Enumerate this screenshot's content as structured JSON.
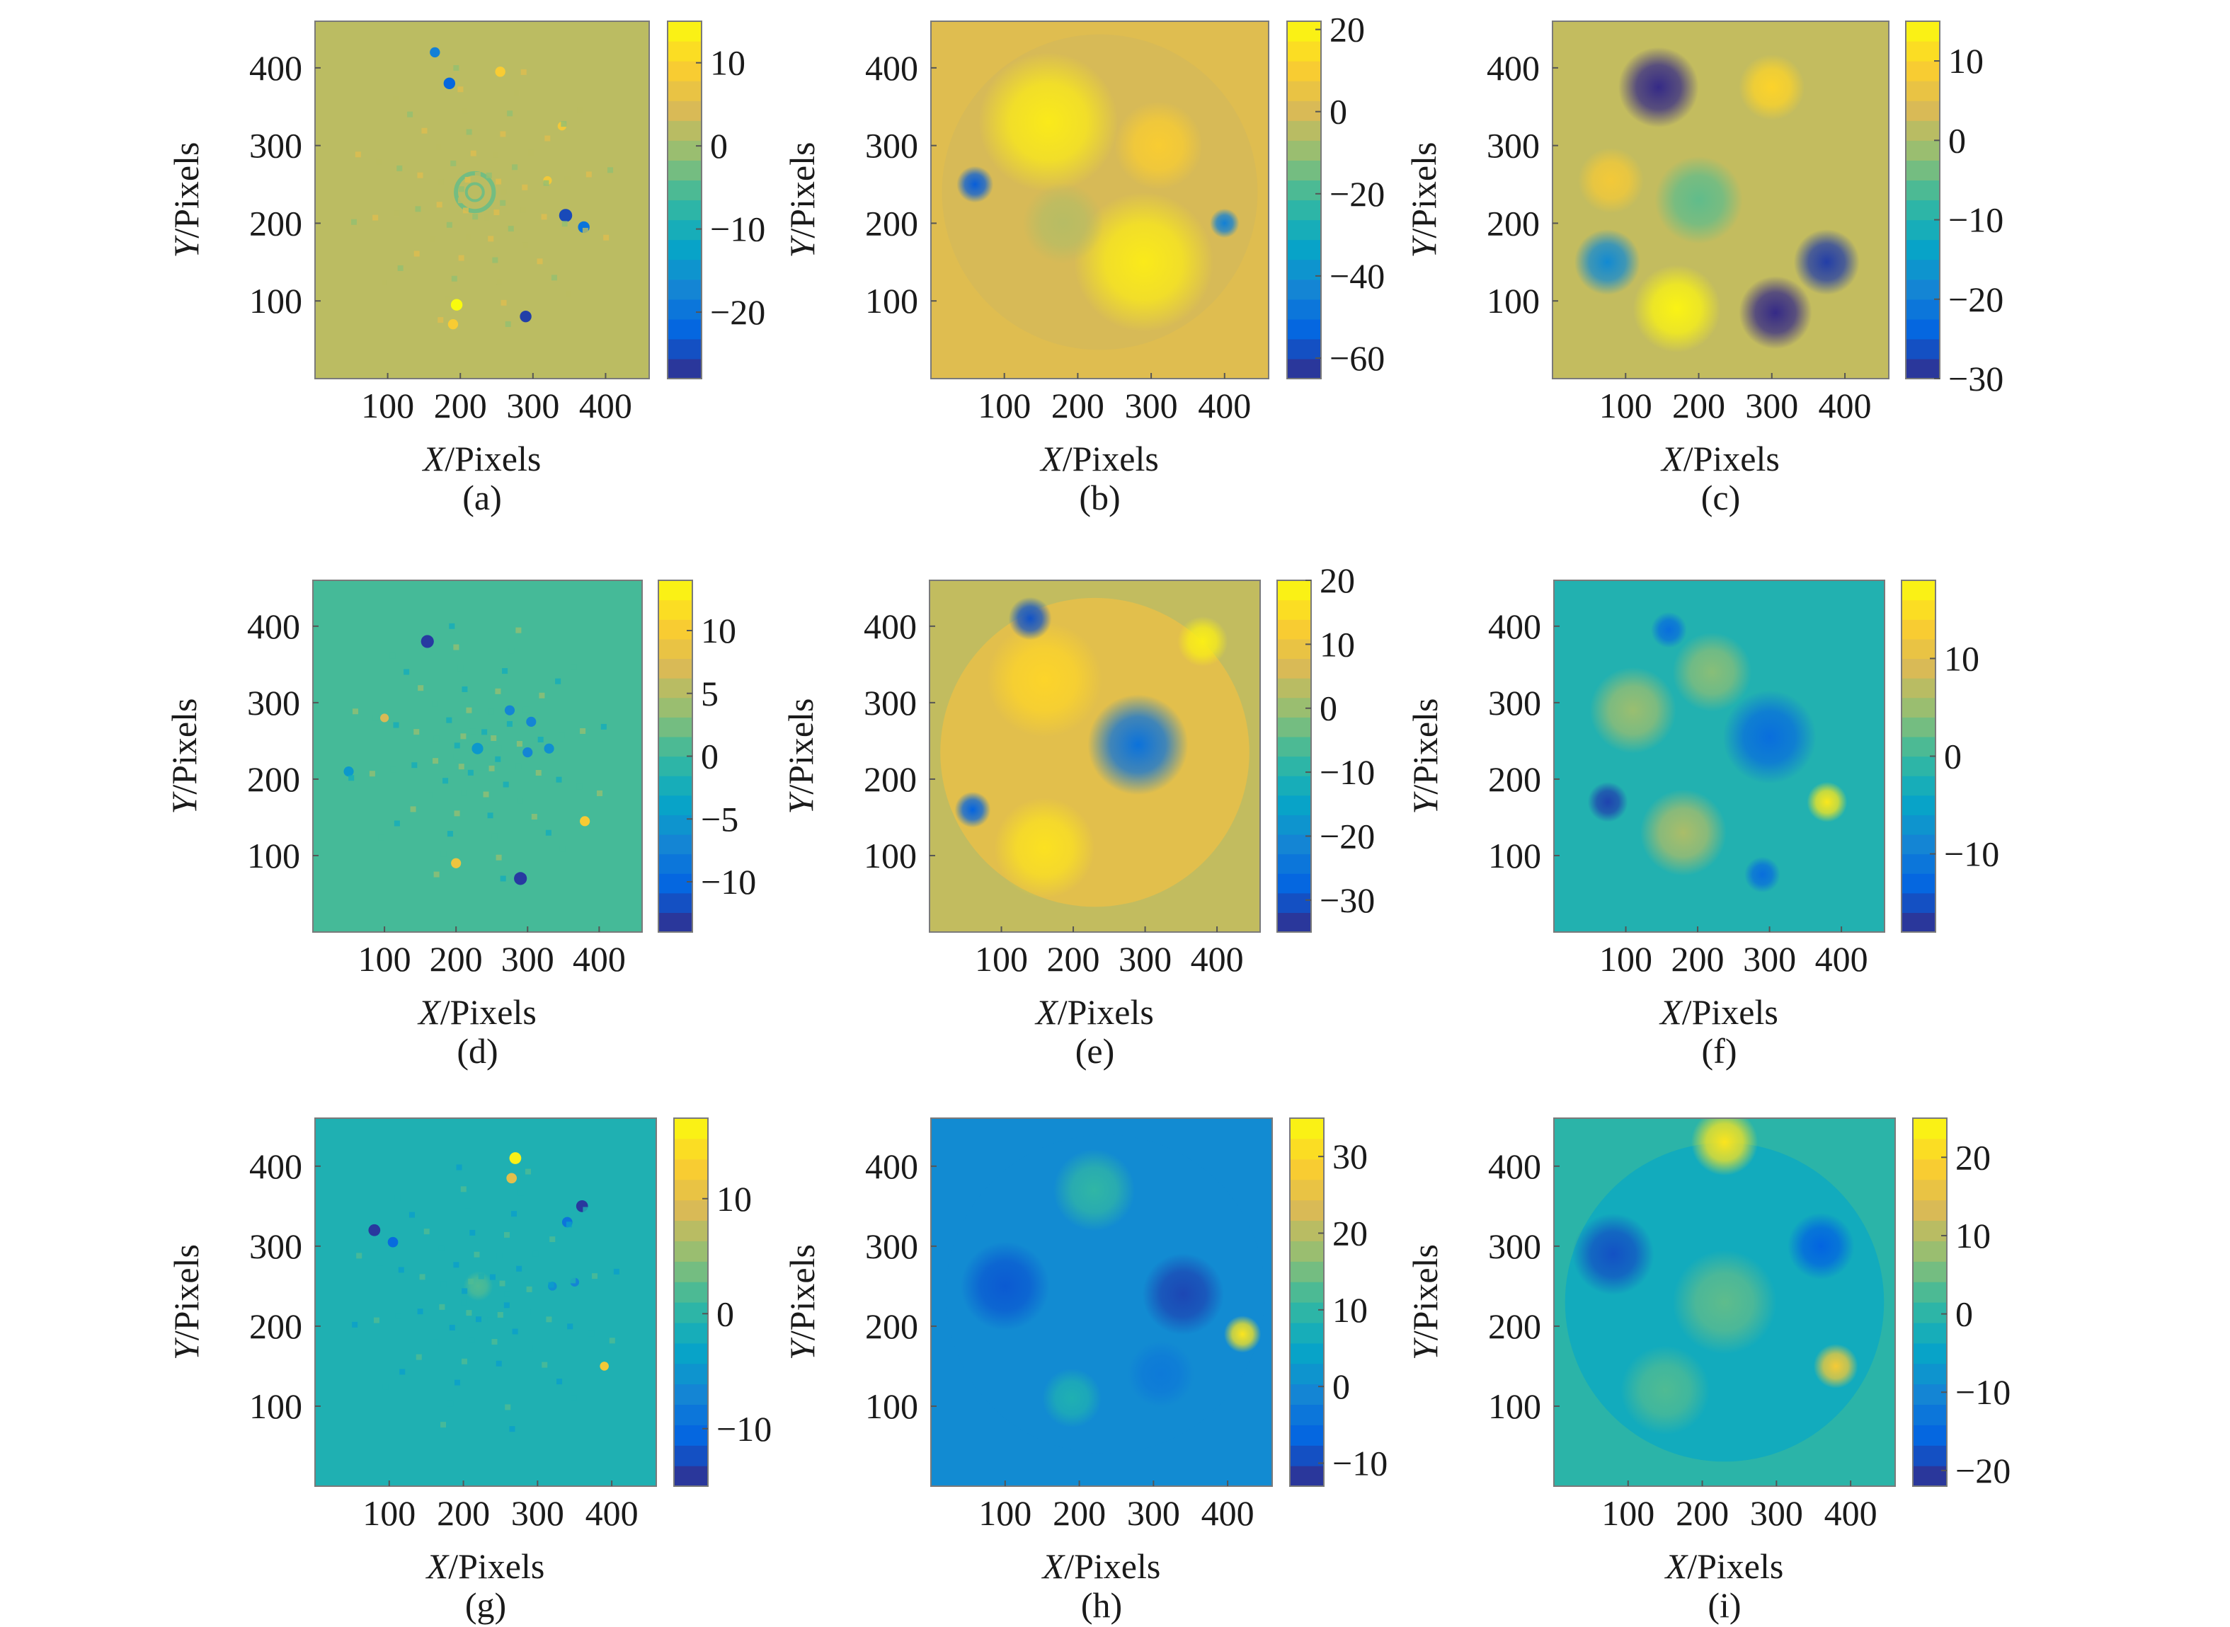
{
  "figure": {
    "type": "heatmap",
    "panels_layout": "3x3 grid",
    "colormap": "parula",
    "colormap_stops": [
      "#352a87",
      "#0363e1",
      "#1485d4",
      "#06a7c6",
      "#38b99e",
      "#92bf73",
      "#d9ba56",
      "#fcce2e",
      "#f9fb0e"
    ]
  },
  "chart_data": [
    {
      "id": "a",
      "type": "heatmap",
      "caption": "(a)",
      "xlabel_var": "X",
      "xlabel_unit": "/Pixels",
      "ylabel_var": "Y",
      "ylabel_unit": "/Pixels",
      "xticks": [
        "100",
        "200",
        "300",
        "400"
      ],
      "yticks": [
        "100",
        "200",
        "300",
        "400"
      ],
      "xlim": [
        0,
        460
      ],
      "ylim": [
        0,
        460
      ],
      "colorbar": {
        "range": [
          -28,
          15
        ],
        "ticks": [
          10,
          0,
          -10,
          -20
        ],
        "tick_labels": [
          "10",
          "0",
          "−10",
          "−20"
        ]
      },
      "background_value": 2,
      "pattern": "sparse points along radial lines",
      "spots": [
        {
          "x": 220,
          "y": 240,
          "v": -3,
          "r": 26,
          "ring": true
        },
        {
          "x": 185,
          "y": 380,
          "v": -22,
          "r": 8
        },
        {
          "x": 165,
          "y": 420,
          "v": -18,
          "r": 7
        },
        {
          "x": 345,
          "y": 210,
          "v": -25,
          "r": 9
        },
        {
          "x": 370,
          "y": 195,
          "v": -20,
          "r": 8
        },
        {
          "x": 290,
          "y": 80,
          "v": -26,
          "r": 8
        },
        {
          "x": 195,
          "y": 95,
          "v": 15,
          "r": 8
        },
        {
          "x": 190,
          "y": 70,
          "v": 9,
          "r": 7
        },
        {
          "x": 255,
          "y": 395,
          "v": 9,
          "r": 7
        },
        {
          "x": 320,
          "y": 255,
          "v": 8,
          "r": 6
        },
        {
          "x": 340,
          "y": 325,
          "v": 8,
          "r": 6
        }
      ]
    },
    {
      "id": "b",
      "type": "heatmap",
      "caption": "(b)",
      "xlabel_var": "X",
      "xlabel_unit": "/Pixels",
      "ylabel_var": "Y",
      "ylabel_unit": "/Pixels",
      "xticks": [
        "100",
        "200",
        "300",
        "400"
      ],
      "yticks": [
        "100",
        "200",
        "300",
        "400"
      ],
      "xlim": [
        0,
        460
      ],
      "ylim": [
        0,
        460
      ],
      "colorbar": {
        "range": [
          -65,
          22
        ],
        "ticks": [
          20,
          0,
          -20,
          -40,
          -60
        ],
        "tick_labels": [
          "20",
          "0",
          "−20",
          "−40",
          "−60"
        ]
      },
      "background_value": 2,
      "pattern": "circular aperture, S-shaped bright band",
      "circle": {
        "cx": 230,
        "cy": 240,
        "r": 215,
        "inner_value": 0
      },
      "spots": [
        {
          "x": 160,
          "y": 330,
          "v": 18,
          "r": 95
        },
        {
          "x": 290,
          "y": 150,
          "v": 18,
          "r": 95
        },
        {
          "x": 310,
          "y": 300,
          "v": 10,
          "r": 60
        },
        {
          "x": 180,
          "y": 200,
          "v": -5,
          "r": 55
        },
        {
          "x": 60,
          "y": 250,
          "v": -55,
          "r": 25
        },
        {
          "x": 400,
          "y": 200,
          "v": -45,
          "r": 20
        }
      ]
    },
    {
      "id": "c",
      "type": "heatmap",
      "caption": "(c)",
      "xlabel_var": "X",
      "xlabel_unit": "/Pixels",
      "ylabel_var": "Y",
      "ylabel_unit": "/Pixels",
      "xticks": [
        "100",
        "200",
        "300",
        "400"
      ],
      "yticks": [
        "100",
        "200",
        "300",
        "400"
      ],
      "xlim": [
        0,
        460
      ],
      "ylim": [
        0,
        460
      ],
      "colorbar": {
        "range": [
          -30,
          15
        ],
        "ticks": [
          10,
          0,
          -10,
          -20,
          -30
        ],
        "tick_labels": [
          "10",
          "0",
          "−10",
          "−20",
          "−30"
        ]
      },
      "background_value": 2,
      "pattern": "smooth blobs",
      "spots": [
        {
          "x": 145,
          "y": 375,
          "v": -30,
          "r": 55
        },
        {
          "x": 300,
          "y": 375,
          "v": 10,
          "r": 45
        },
        {
          "x": 80,
          "y": 255,
          "v": 8,
          "r": 45
        },
        {
          "x": 200,
          "y": 230,
          "v": -5,
          "r": 60
        },
        {
          "x": 75,
          "y": 150,
          "v": -18,
          "r": 45
        },
        {
          "x": 170,
          "y": 90,
          "v": 14,
          "r": 60
        },
        {
          "x": 305,
          "y": 85,
          "v": -30,
          "r": 50
        },
        {
          "x": 375,
          "y": 150,
          "v": -28,
          "r": 45
        }
      ]
    },
    {
      "id": "d",
      "type": "heatmap",
      "caption": "(d)",
      "xlabel_var": "X",
      "xlabel_unit": "/Pixels",
      "ylabel_var": "Y",
      "ylabel_unit": "/Pixels",
      "xticks": [
        "100",
        "200",
        "300",
        "400"
      ],
      "yticks": [
        "100",
        "200",
        "300",
        "400"
      ],
      "xlim": [
        0,
        460
      ],
      "ylim": [
        0,
        460
      ],
      "colorbar": {
        "range": [
          -14,
          14
        ],
        "ticks": [
          10,
          5,
          0,
          -5,
          -10
        ],
        "tick_labels": [
          "10",
          "5",
          "0",
          "−5",
          "−10"
        ]
      },
      "background_value": 0.5,
      "pattern": "sparse points along radial lines",
      "spots": [
        {
          "x": 160,
          "y": 380,
          "v": -13,
          "r": 9
        },
        {
          "x": 290,
          "y": 70,
          "v": -13,
          "r": 9
        },
        {
          "x": 275,
          "y": 290,
          "v": -7,
          "r": 7
        },
        {
          "x": 305,
          "y": 275,
          "v": -7,
          "r": 7
        },
        {
          "x": 300,
          "y": 235,
          "v": -7,
          "r": 7
        },
        {
          "x": 330,
          "y": 240,
          "v": -6,
          "r": 7
        },
        {
          "x": 230,
          "y": 240,
          "v": -5,
          "r": 8
        },
        {
          "x": 50,
          "y": 210,
          "v": -5,
          "r": 7
        },
        {
          "x": 380,
          "y": 145,
          "v": 10,
          "r": 7
        },
        {
          "x": 200,
          "y": 90,
          "v": 9,
          "r": 7
        },
        {
          "x": 100,
          "y": 280,
          "v": 7,
          "r": 6
        }
      ]
    },
    {
      "id": "e",
      "type": "heatmap",
      "caption": "(e)",
      "xlabel_var": "X",
      "xlabel_unit": "/Pixels",
      "ylabel_var": "Y",
      "ylabel_unit": "/Pixels",
      "xticks": [
        "100",
        "200",
        "300",
        "400"
      ],
      "yticks": [
        "100",
        "200",
        "300",
        "400"
      ],
      "xlim": [
        0,
        460
      ],
      "ylim": [
        0,
        460
      ],
      "colorbar": {
        "range": [
          -35,
          20
        ],
        "ticks": [
          20,
          10,
          0,
          -10,
          -20,
          -30
        ],
        "tick_labels": [
          "20",
          "10",
          "0",
          "−10",
          "−20",
          "−30"
        ]
      },
      "background_value": 4,
      "pattern": "circular aperture with central depression",
      "circle": {
        "cx": 230,
        "cy": 235,
        "r": 215,
        "inner_value": 8
      },
      "spots": [
        {
          "x": 290,
          "y": 245,
          "v": -25,
          "r": 70
        },
        {
          "x": 160,
          "y": 330,
          "v": 14,
          "r": 80
        },
        {
          "x": 160,
          "y": 110,
          "v": 16,
          "r": 70
        },
        {
          "x": 380,
          "y": 380,
          "v": 18,
          "r": 35
        },
        {
          "x": 140,
          "y": 410,
          "v": -30,
          "r": 30
        },
        {
          "x": 60,
          "y": 160,
          "v": -28,
          "r": 25
        }
      ]
    },
    {
      "id": "f",
      "type": "heatmap",
      "caption": "(f)",
      "xlabel_var": "X",
      "xlabel_unit": "/Pixels",
      "ylabel_var": "Y",
      "ylabel_unit": "/Pixels",
      "xticks": [
        "100",
        "200",
        "300",
        "400"
      ],
      "yticks": [
        "100",
        "200",
        "300",
        "400"
      ],
      "xlim": [
        0,
        460
      ],
      "ylim": [
        0,
        460
      ],
      "colorbar": {
        "range": [
          -18,
          18
        ],
        "ticks": [
          10,
          0,
          -10
        ],
        "tick_labels": [
          "10",
          "0",
          "−10"
        ]
      },
      "background_value": -2,
      "pattern": "smooth blobs",
      "spots": [
        {
          "x": 300,
          "y": 255,
          "v": -12,
          "r": 65
        },
        {
          "x": 160,
          "y": 395,
          "v": -12,
          "r": 25
        },
        {
          "x": 75,
          "y": 170,
          "v": -16,
          "r": 28
        },
        {
          "x": 290,
          "y": 75,
          "v": -12,
          "r": 25
        },
        {
          "x": 380,
          "y": 170,
          "v": 16,
          "r": 28
        },
        {
          "x": 180,
          "y": 130,
          "v": 6,
          "r": 60
        },
        {
          "x": 110,
          "y": 290,
          "v": 5,
          "r": 60
        },
        {
          "x": 220,
          "y": 340,
          "v": 4,
          "r": 55
        }
      ]
    },
    {
      "id": "g",
      "type": "heatmap",
      "caption": "(g)",
      "xlabel_var": "X",
      "xlabel_unit": "/Pixels",
      "ylabel_var": "Y",
      "ylabel_unit": "/Pixels",
      "xticks": [
        "100",
        "200",
        "300",
        "400"
      ],
      "yticks": [
        "100",
        "200",
        "300",
        "400"
      ],
      "xlim": [
        0,
        460
      ],
      "ylim": [
        0,
        460
      ],
      "colorbar": {
        "range": [
          -15,
          17
        ],
        "ticks": [
          10,
          0,
          -10
        ],
        "tick_labels": [
          "10",
          "0",
          "−10"
        ]
      },
      "background_value": -1,
      "pattern": "sparse points along radial lines",
      "spots": [
        {
          "x": 80,
          "y": 320,
          "v": -14,
          "r": 8
        },
        {
          "x": 105,
          "y": 305,
          "v": -10,
          "r": 7
        },
        {
          "x": 360,
          "y": 350,
          "v": -14,
          "r": 8
        },
        {
          "x": 340,
          "y": 330,
          "v": -9,
          "r": 7
        },
        {
          "x": 270,
          "y": 410,
          "v": 16,
          "r": 8
        },
        {
          "x": 265,
          "y": 385,
          "v": 10,
          "r": 7
        },
        {
          "x": 390,
          "y": 150,
          "v": 12,
          "r": 6
        },
        {
          "x": 320,
          "y": 250,
          "v": -6,
          "r": 6
        },
        {
          "x": 350,
          "y": 255,
          "v": -7,
          "r": 6
        },
        {
          "x": 220,
          "y": 250,
          "v": 2,
          "r": 20
        }
      ]
    },
    {
      "id": "h",
      "type": "heatmap",
      "caption": "(h)",
      "xlabel_var": "X",
      "xlabel_unit": "/Pixels",
      "ylabel_var": "Y",
      "ylabel_unit": "/Pixels",
      "xticks": [
        "100",
        "200",
        "300",
        "400"
      ],
      "yticks": [
        "100",
        "200",
        "300",
        "400"
      ],
      "xlim": [
        0,
        460
      ],
      "ylim": [
        0,
        460
      ],
      "colorbar": {
        "range": [
          -13,
          35
        ],
        "ticks": [
          30,
          20,
          10,
          0,
          -10
        ],
        "tick_labels": [
          "30",
          "20",
          "10",
          "0",
          "−10"
        ]
      },
      "background_value": 0,
      "pattern": "circular aperture with lobes",
      "circle": {
        "cx": 235,
        "cy": 240,
        "r": 215,
        "inner_value": 0
      },
      "spots": [
        {
          "x": 220,
          "y": 370,
          "v": 10,
          "r": 55
        },
        {
          "x": 190,
          "y": 110,
          "v": 8,
          "r": 40
        },
        {
          "x": 100,
          "y": 250,
          "v": -8,
          "r": 60
        },
        {
          "x": 340,
          "y": 240,
          "v": -10,
          "r": 55
        },
        {
          "x": 420,
          "y": 190,
          "v": 32,
          "r": 25
        },
        {
          "x": 310,
          "y": 140,
          "v": -3,
          "r": 45
        }
      ]
    },
    {
      "id": "i",
      "type": "heatmap",
      "caption": "(i)",
      "xlabel_var": "X",
      "xlabel_unit": "/Pixels",
      "ylabel_var": "Y",
      "ylabel_unit": "/Pixels",
      "xticks": [
        "100",
        "200",
        "300",
        "400"
      ],
      "yticks": [
        "100",
        "200",
        "300",
        "400"
      ],
      "xlim": [
        0,
        460
      ],
      "ylim": [
        0,
        460
      ],
      "colorbar": {
        "range": [
          -22,
          25
        ],
        "ticks": [
          20,
          10,
          0,
          -10,
          -20
        ],
        "tick_labels": [
          "20",
          "10",
          "0",
          "−10",
          "−20"
        ]
      },
      "background_value": 0,
      "pattern": "circular aperture with lobes",
      "circle": {
        "cx": 230,
        "cy": 230,
        "r": 215,
        "inner_value": -3
      },
      "spots": [
        {
          "x": 230,
          "y": 430,
          "v": 22,
          "r": 45
        },
        {
          "x": 80,
          "y": 290,
          "v": -18,
          "r": 55
        },
        {
          "x": 360,
          "y": 300,
          "v": -16,
          "r": 45
        },
        {
          "x": 380,
          "y": 150,
          "v": 18,
          "r": 30
        },
        {
          "x": 230,
          "y": 230,
          "v": 4,
          "r": 70
        },
        {
          "x": 150,
          "y": 120,
          "v": 3,
          "r": 60
        }
      ]
    }
  ]
}
